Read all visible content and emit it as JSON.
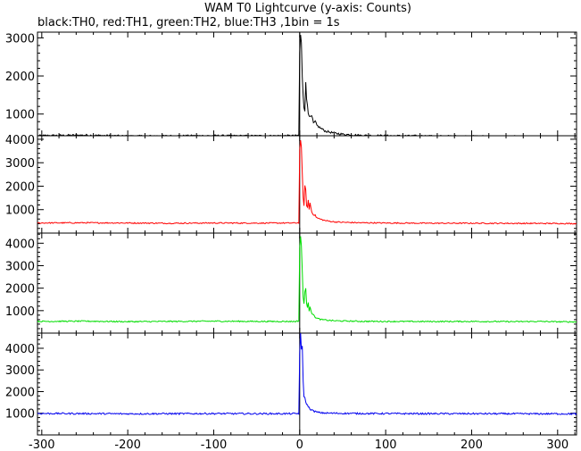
{
  "chart_data": {
    "type": "line",
    "title": "WAM T0 Lightcurve (y-axis: Counts)",
    "subtitle": "black:TH0, red:TH1, green:TH2, blue:TH3 ,1bin = 1s",
    "xlabel": "",
    "ylabel": "",
    "grid": false,
    "xlim": [
      -305,
      322
    ],
    "x_ticks": [
      -300,
      -200,
      -100,
      0,
      100,
      200,
      300
    ],
    "x_tick_labels": [
      "-300",
      "-200",
      "-100",
      "0",
      "100",
      "200",
      "300"
    ],
    "panels": [
      {
        "series": "TH0",
        "color": "#000000",
        "ylim": [
          430,
          3150
        ],
        "y_ticks": [
          1000,
          2000,
          3000
        ],
        "y_tick_labels": [
          "1000",
          "2000",
          "3000"
        ],
        "baseline": 420,
        "points": [
          [
            -305,
            430
          ],
          [
            -270,
            440
          ],
          [
            -250,
            445
          ],
          [
            -200,
            420
          ],
          [
            -150,
            425
          ],
          [
            -100,
            430
          ],
          [
            -50,
            425
          ],
          [
            -5,
            430
          ],
          [
            -1,
            440
          ],
          [
            0,
            2600
          ],
          [
            1,
            3050
          ],
          [
            2,
            2850
          ],
          [
            3,
            2000
          ],
          [
            4,
            1500
          ],
          [
            5,
            1200
          ],
          [
            6,
            1100
          ],
          [
            7,
            1800
          ],
          [
            8,
            1400
          ],
          [
            9,
            1250
          ],
          [
            10,
            1050
          ],
          [
            12,
            900
          ],
          [
            14,
            950
          ],
          [
            16,
            750
          ],
          [
            18,
            800
          ],
          [
            20,
            700
          ],
          [
            25,
            620
          ],
          [
            30,
            550
          ],
          [
            40,
            500
          ],
          [
            50,
            470
          ],
          [
            70,
            440
          ],
          [
            100,
            430
          ],
          [
            150,
            420
          ],
          [
            200,
            415
          ],
          [
            250,
            410
          ],
          [
            300,
            405
          ],
          [
            322,
            400
          ]
        ]
      },
      {
        "series": "TH1",
        "color": "#ff0000",
        "ylim": [
          0,
          4150
        ],
        "y_ticks": [
          1000,
          2000,
          3000,
          4000
        ],
        "y_tick_labels": [
          "1000",
          "2000",
          "3000",
          "4000"
        ],
        "baseline": 420,
        "points": [
          [
            -305,
            430
          ],
          [
            -250,
            440
          ],
          [
            -200,
            430
          ],
          [
            -150,
            420
          ],
          [
            -100,
            430
          ],
          [
            -50,
            425
          ],
          [
            -5,
            430
          ],
          [
            -1,
            440
          ],
          [
            0,
            3500
          ],
          [
            1,
            4000
          ],
          [
            2,
            3600
          ],
          [
            3,
            2500
          ],
          [
            4,
            1500
          ],
          [
            5,
            1200
          ],
          [
            6,
            2000
          ],
          [
            7,
            1800
          ],
          [
            8,
            1200
          ],
          [
            9,
            1100
          ],
          [
            10,
            1400
          ],
          [
            11,
            1000
          ],
          [
            12,
            1300
          ],
          [
            14,
            900
          ],
          [
            16,
            800
          ],
          [
            18,
            750
          ],
          [
            20,
            650
          ],
          [
            25,
            580
          ],
          [
            30,
            530
          ],
          [
            40,
            480
          ],
          [
            50,
            460
          ],
          [
            70,
            440
          ],
          [
            100,
            430
          ],
          [
            150,
            420
          ],
          [
            200,
            420
          ],
          [
            250,
            415
          ],
          [
            300,
            410
          ],
          [
            322,
            405
          ]
        ]
      },
      {
        "series": "TH2",
        "color": "#00dd00",
        "ylim": [
          0,
          4450
        ],
        "y_ticks": [
          1000,
          2000,
          3000,
          4000
        ],
        "y_tick_labels": [
          "1000",
          "2000",
          "3000",
          "4000"
        ],
        "baseline": 520,
        "points": [
          [
            -305,
            520
          ],
          [
            -250,
            530
          ],
          [
            -200,
            510
          ],
          [
            -150,
            520
          ],
          [
            -100,
            530
          ],
          [
            -50,
            520
          ],
          [
            -5,
            520
          ],
          [
            -1,
            540
          ],
          [
            0,
            3800
          ],
          [
            1,
            4300
          ],
          [
            2,
            3900
          ],
          [
            3,
            2700
          ],
          [
            4,
            1600
          ],
          [
            5,
            1300
          ],
          [
            6,
            1900
          ],
          [
            7,
            2000
          ],
          [
            8,
            1300
          ],
          [
            9,
            1100
          ],
          [
            10,
            1400
          ],
          [
            11,
            1000
          ],
          [
            12,
            1200
          ],
          [
            14,
            900
          ],
          [
            16,
            800
          ],
          [
            18,
            720
          ],
          [
            20,
            660
          ],
          [
            25,
            600
          ],
          [
            30,
            580
          ],
          [
            40,
            550
          ],
          [
            50,
            540
          ],
          [
            70,
            525
          ],
          [
            100,
            520
          ],
          [
            150,
            515
          ],
          [
            200,
            520
          ],
          [
            250,
            510
          ],
          [
            280,
            520
          ],
          [
            300,
            505
          ],
          [
            322,
            500
          ]
        ]
      },
      {
        "series": "TH3",
        "color": "#0000ee",
        "ylim": [
          0,
          4700
        ],
        "y_ticks": [
          1000,
          2000,
          3000,
          4000
        ],
        "y_tick_labels": [
          "1000",
          "2000",
          "3000",
          "4000"
        ],
        "baseline": 980,
        "points": [
          [
            -305,
            990
          ],
          [
            -250,
            985
          ],
          [
            -200,
            975
          ],
          [
            -150,
            980
          ],
          [
            -100,
            985
          ],
          [
            -50,
            980
          ],
          [
            -5,
            980
          ],
          [
            -1,
            990
          ],
          [
            0,
            3700
          ],
          [
            1,
            4650
          ],
          [
            2,
            3900
          ],
          [
            3,
            4100
          ],
          [
            4,
            2500
          ],
          [
            5,
            1800
          ],
          [
            6,
            1700
          ],
          [
            7,
            1500
          ],
          [
            8,
            1450
          ],
          [
            10,
            1300
          ],
          [
            12,
            1200
          ],
          [
            14,
            1150
          ],
          [
            16,
            1100
          ],
          [
            18,
            1080
          ],
          [
            20,
            1050
          ],
          [
            25,
            1020
          ],
          [
            30,
            1010
          ],
          [
            40,
            1000
          ],
          [
            50,
            995
          ],
          [
            70,
            990
          ],
          [
            100,
            985
          ],
          [
            150,
            980
          ],
          [
            200,
            980
          ],
          [
            250,
            975
          ],
          [
            300,
            975
          ],
          [
            322,
            970
          ]
        ]
      }
    ]
  }
}
